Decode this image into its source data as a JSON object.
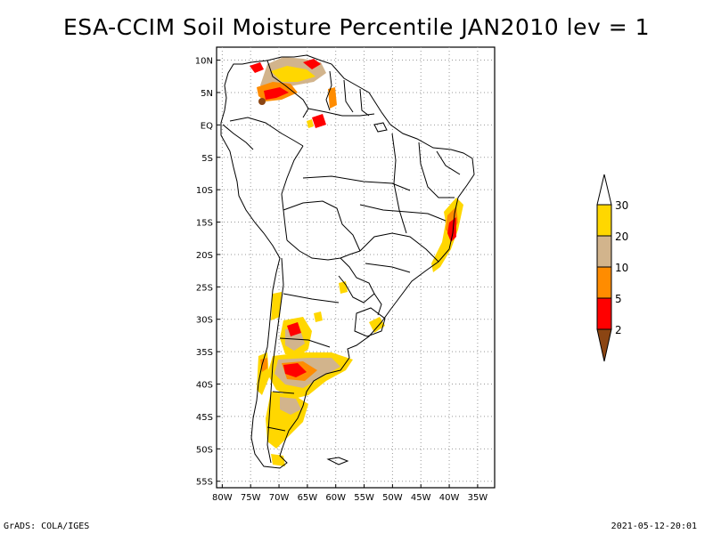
{
  "title": "ESA-CCIM Soil Moisture Percentile JAN2010 lev = 1",
  "map": {
    "lat_labels": [
      "10N",
      "5N",
      "EQ",
      "5S",
      "10S",
      "15S",
      "20S",
      "25S",
      "30S",
      "35S",
      "40S",
      "45S",
      "50S",
      "55S"
    ],
    "lat_values": [
      10,
      5,
      0,
      -5,
      -10,
      -15,
      -20,
      -25,
      -30,
      -35,
      -40,
      -45,
      -50,
      -55
    ],
    "lon_labels": [
      "80W",
      "75W",
      "70W",
      "65W",
      "60W",
      "55W",
      "50W",
      "45W",
      "40W",
      "35W"
    ],
    "lon_values": [
      -80,
      -75,
      -70,
      -65,
      -60,
      -55,
      -50,
      -45,
      -40,
      -35
    ],
    "lon_range": [
      -81,
      -32
    ],
    "lat_range": [
      12,
      -56
    ],
    "grid": "dotted"
  },
  "legend": {
    "levels": [
      "2",
      "5",
      "10",
      "20",
      "30"
    ],
    "colors": {
      "brown": "#8b4513",
      "red": "#ff0000",
      "orange": "#ff8c00",
      "tan": "#d2b48c",
      "yellow": "#ffd700",
      "white": "#ffffff"
    }
  },
  "footer": {
    "left": "GrADS: COLA/IGES",
    "right": "2021-05-12-20:01"
  }
}
